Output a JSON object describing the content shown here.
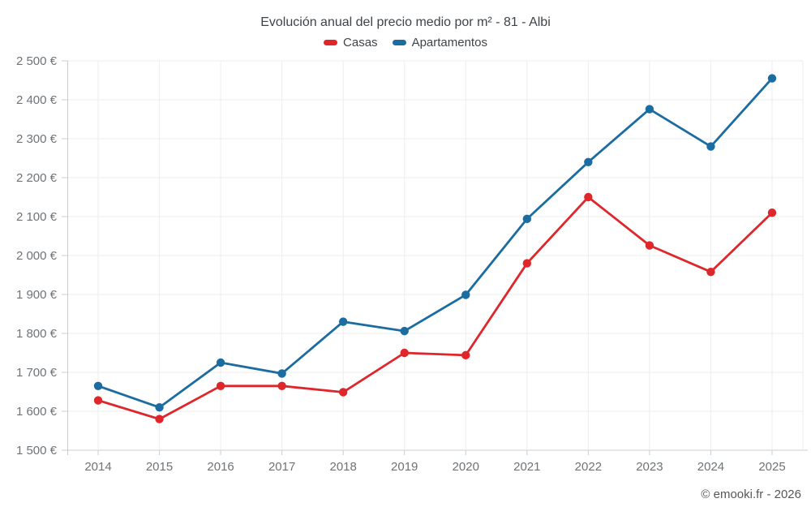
{
  "chart_data": {
    "type": "line",
    "title": "Evolución anual del precio medio por m² - 81 - Albi",
    "footer": "© emooki.fr - 2026",
    "categories": [
      "2014",
      "2015",
      "2016",
      "2017",
      "2018",
      "2019",
      "2020",
      "2021",
      "2022",
      "2023",
      "2024",
      "2025"
    ],
    "series": [
      {
        "name": "Casas",
        "color": "#df262b",
        "values": [
          1628,
          1580,
          1665,
          1665,
          1649,
          1750,
          1744,
          1980,
          2150,
          2026,
          1958,
          2110
        ]
      },
      {
        "name": "Apartamentos",
        "color": "#1b6ca1",
        "values": [
          1665,
          1610,
          1725,
          1697,
          1830,
          1806,
          1899,
          2094,
          2240,
          2376,
          2280,
          2455
        ]
      }
    ],
    "ylim": [
      1500,
      2500
    ],
    "ytick_step": 100,
    "ytick_labels": [
      "1 500 €",
      "1 600 €",
      "1 700 €",
      "1 800 €",
      "1 900 €",
      "2 000 €",
      "2 100 €",
      "2 200 €",
      "2 300 €",
      "2 400 €",
      "2 500 €"
    ],
    "grid": true,
    "legend_position": "top",
    "colors": {
      "gridline": "#ededed",
      "axis": "#c9cdd0",
      "tick_label": "#6e7377"
    }
  }
}
